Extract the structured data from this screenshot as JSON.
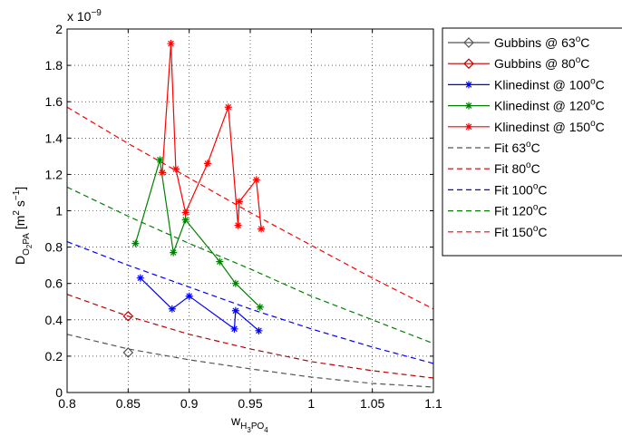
{
  "chart_data": {
    "type": "line",
    "xlabel": {
      "base": "w",
      "sub1": "H",
      "sub2": "3",
      "sub3": "PO",
      "sub4": "4"
    },
    "ylabel": {
      "base": "D",
      "sub1": "O",
      "sub2": "2",
      "sub3": "PA",
      "unit_open": " [m",
      "exp1": "2",
      "unit_mid": " s",
      "exp2": "−1",
      "unit_close": "]"
    },
    "y_multiplier": {
      "base": "x 10",
      "exp": "−9"
    },
    "xlim": [
      0.8,
      1.1
    ],
    "ylim": [
      0,
      2
    ],
    "xticks": [
      0.8,
      0.85,
      0.9,
      0.95,
      1,
      1.05,
      1.1
    ],
    "xtick_labels": [
      "0.8",
      "0.85",
      "0.9",
      "0.95",
      "1",
      "1.05",
      "1.1"
    ],
    "yticks": [
      0,
      0.2,
      0.4,
      0.6,
      0.8,
      1,
      1.2,
      1.4,
      1.6,
      1.8,
      2
    ],
    "ytick_labels": [
      "0",
      "0.2",
      "0.4",
      "0.6",
      "0.8",
      "1",
      "1.2",
      "1.4",
      "1.6",
      "1.8",
      "2"
    ],
    "grid": true,
    "legend_position": "outside-right",
    "series": [
      {
        "name": "Gubbins @ 63°C",
        "label": "Gubbins @ 63",
        "unit": "C",
        "color": "#555555",
        "marker": "diamond",
        "line": "solid",
        "x": [
          0.85
        ],
        "y": [
          0.22
        ]
      },
      {
        "name": "Gubbins @ 80°C",
        "label": "Gubbins @ 80",
        "unit": "C",
        "color": "#c00000",
        "marker": "diamond",
        "line": "solid",
        "x": [
          0.85
        ],
        "y": [
          0.42
        ]
      },
      {
        "name": "Klinedinst @ 100°C",
        "label": "Klinedinst @ 100",
        "unit": "C",
        "color": "#0000ff",
        "marker": "asterisk",
        "line": "solid",
        "x": [
          0.86,
          0.886,
          0.9,
          0.937,
          0.938,
          0.957
        ],
        "y": [
          0.63,
          0.46,
          0.53,
          0.35,
          0.45,
          0.34
        ]
      },
      {
        "name": "Klinedinst @ 120°C",
        "label": "Klinedinst @ 120",
        "unit": "C",
        "color": "#008000",
        "marker": "asterisk",
        "line": "solid",
        "x": [
          0.856,
          0.876,
          0.887,
          0.897,
          0.925,
          0.938,
          0.958
        ],
        "y": [
          0.82,
          1.28,
          0.77,
          0.95,
          0.72,
          0.6,
          0.47
        ]
      },
      {
        "name": "Klinedinst @ 150°C",
        "label": "Klinedinst @ 150",
        "unit": "C",
        "color": "#ff0000",
        "marker": "asterisk",
        "line": "solid",
        "x": [
          0.878,
          0.885,
          0.889,
          0.897,
          0.915,
          0.932,
          0.94,
          0.941,
          0.955,
          0.959
        ],
        "y": [
          1.21,
          1.92,
          1.23,
          0.99,
          1.26,
          1.57,
          0.92,
          1.05,
          1.17,
          0.9
        ]
      },
      {
        "name": "Fit 63°C",
        "label": "Fit 63",
        "unit": "C",
        "color": "#555555",
        "marker": "none",
        "line": "dashed",
        "x": [
          0.8,
          0.85,
          0.9,
          0.95,
          1.0,
          1.05,
          1.1
        ],
        "y": [
          0.32,
          0.24,
          0.18,
          0.13,
          0.085,
          0.05,
          0.03
        ]
      },
      {
        "name": "Fit 80°C",
        "label": "Fit 80",
        "unit": "C",
        "color": "#c00000",
        "marker": "none",
        "line": "dashed",
        "x": [
          0.8,
          0.85,
          0.9,
          0.95,
          1.0,
          1.05,
          1.1
        ],
        "y": [
          0.54,
          0.42,
          0.32,
          0.24,
          0.17,
          0.12,
          0.08
        ]
      },
      {
        "name": "Fit 100°C",
        "label": "Fit 100",
        "unit": "C",
        "color": "#0000ff",
        "marker": "none",
        "line": "dashed",
        "x": [
          0.8,
          0.85,
          0.9,
          0.95,
          1.0,
          1.05,
          1.1
        ],
        "y": [
          0.83,
          0.7,
          0.58,
          0.46,
          0.35,
          0.25,
          0.16
        ]
      },
      {
        "name": "Fit 120°C",
        "label": "Fit 120",
        "unit": "C",
        "color": "#008000",
        "marker": "none",
        "line": "dashed",
        "x": [
          0.8,
          0.85,
          0.9,
          0.95,
          1.0,
          1.05,
          1.1
        ],
        "y": [
          1.13,
          0.97,
          0.82,
          0.68,
          0.53,
          0.4,
          0.27
        ]
      },
      {
        "name": "Fit 150°C",
        "label": "Fit 150",
        "unit": "C",
        "color": "#ff0000",
        "marker": "none",
        "line": "dashed",
        "x": [
          0.8,
          0.85,
          0.9,
          0.95,
          1.0,
          1.05,
          1.1
        ],
        "y": [
          1.57,
          1.37,
          1.18,
          0.99,
          0.81,
          0.63,
          0.46
        ]
      }
    ]
  }
}
